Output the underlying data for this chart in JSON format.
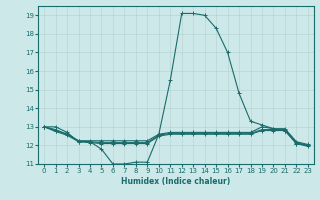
{
  "xlabel": "Humidex (Indice chaleur)",
  "xlim": [
    -0.5,
    23.5
  ],
  "ylim": [
    11,
    19.5
  ],
  "yticks": [
    11,
    12,
    13,
    14,
    15,
    16,
    17,
    18,
    19
  ],
  "xticks": [
    0,
    1,
    2,
    3,
    4,
    5,
    6,
    7,
    8,
    9,
    10,
    11,
    12,
    13,
    14,
    15,
    16,
    17,
    18,
    19,
    20,
    21,
    22,
    23
  ],
  "bg_color": "#cde8e8",
  "grid_color": "#b8d4d4",
  "line_color": "#1a6b6b",
  "series": [
    {
      "x": [
        0,
        1,
        2,
        3,
        4,
        5,
        6,
        7,
        8,
        9,
        10,
        11,
        12,
        13,
        14,
        15,
        16,
        17,
        18,
        19,
        20,
        21,
        22,
        23
      ],
      "y": [
        13.0,
        13.0,
        12.7,
        12.2,
        12.2,
        11.8,
        11.0,
        11.0,
        11.1,
        11.1,
        12.6,
        15.5,
        19.1,
        19.1,
        19.0,
        18.3,
        17.0,
        14.8,
        13.3,
        13.1,
        12.9,
        12.8,
        12.1,
        12.0
      ]
    },
    {
      "x": [
        0,
        1,
        2,
        3,
        4,
        5,
        6,
        7,
        8,
        9,
        10,
        11,
        12,
        13,
        14,
        15,
        16,
        17,
        18,
        19,
        20,
        21,
        22,
        23
      ],
      "y": [
        13.0,
        12.85,
        12.6,
        12.25,
        12.25,
        12.25,
        12.25,
        12.25,
        12.25,
        12.25,
        12.6,
        12.7,
        12.7,
        12.7,
        12.7,
        12.7,
        12.7,
        12.7,
        12.7,
        13.0,
        12.9,
        12.9,
        12.2,
        12.05
      ]
    },
    {
      "x": [
        0,
        1,
        2,
        3,
        4,
        5,
        6,
        7,
        8,
        9,
        10,
        11,
        12,
        13,
        14,
        15,
        16,
        17,
        18,
        19,
        20,
        21,
        22,
        23
      ],
      "y": [
        13.0,
        12.75,
        12.55,
        12.2,
        12.15,
        12.1,
        12.1,
        12.1,
        12.1,
        12.1,
        12.5,
        12.6,
        12.6,
        12.6,
        12.6,
        12.6,
        12.6,
        12.6,
        12.6,
        12.8,
        12.8,
        12.8,
        12.1,
        11.95
      ]
    },
    {
      "x": [
        0,
        1,
        2,
        3,
        4,
        5,
        9,
        10,
        11,
        12,
        13,
        14,
        15,
        16,
        17,
        18,
        19,
        20,
        21,
        22,
        23
      ],
      "y": [
        13.0,
        12.8,
        12.6,
        12.25,
        12.2,
        12.15,
        12.15,
        12.55,
        12.65,
        12.65,
        12.65,
        12.65,
        12.65,
        12.65,
        12.65,
        12.65,
        12.85,
        12.85,
        12.85,
        12.15,
        12.0
      ]
    }
  ]
}
